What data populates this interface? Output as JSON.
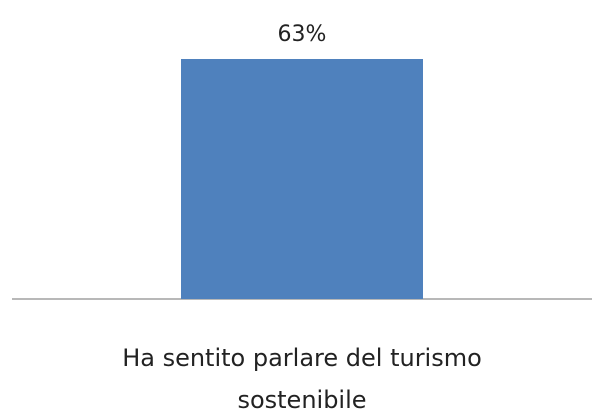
{
  "chart_data": {
    "type": "bar",
    "categories": [
      "Ha sentito parlare del turismo sostenibile"
    ],
    "category_label_lines": [
      [
        "Ha sentito parlare del turismo",
        "sostenibile"
      ]
    ],
    "values": [
      63
    ],
    "data_labels": [
      "63%"
    ],
    "ylim": [
      0,
      63
    ],
    "grid": false,
    "legend": "none",
    "bar_color": "#4f81bd",
    "axis_color": "#a0a0a0"
  }
}
